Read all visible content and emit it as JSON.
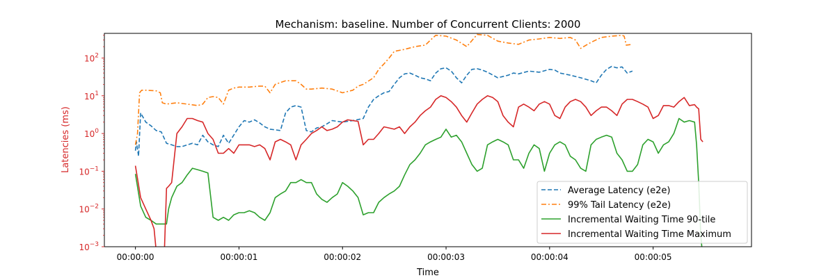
{
  "chart_data": {
    "type": "line",
    "title": "Mechanism: baseline. Number of Concurrent Clients: 2000",
    "xlabel": "Time",
    "ylabel": "Latencies (ms)",
    "yscale": "log",
    "ylim": [
      0.001,
      450
    ],
    "xlim": [
      -0.3,
      5.95
    ],
    "x_ticks": [
      0,
      1,
      2,
      3,
      4,
      5
    ],
    "x_tick_labels": [
      "00:00:00",
      "00:00:01",
      "00:00:02",
      "00:00:03",
      "00:00:04",
      "00:00:05"
    ],
    "y_ticks": [
      0.001,
      0.01,
      0.1,
      1,
      10,
      100
    ],
    "y_tick_labels": [
      [
        "10",
        "−3"
      ],
      [
        "10",
        "−2"
      ],
      [
        "10",
        "−1"
      ],
      [
        "10",
        "0"
      ],
      [
        "10",
        "1"
      ],
      [
        "10",
        "2"
      ]
    ],
    "axis_color": "#d62728",
    "grid": false,
    "legend_location": "lower right",
    "series": [
      {
        "name": "Average Latency (e2e)",
        "color": "#1f77b4",
        "style": "dashed",
        "x": [
          0,
          0.01,
          0.03,
          0.05,
          0.1,
          0.15,
          0.2,
          0.25,
          0.3,
          0.35,
          0.4,
          0.45,
          0.5,
          0.55,
          0.6,
          0.65,
          0.7,
          0.75,
          0.8,
          0.85,
          0.9,
          1.0,
          1.05,
          1.1,
          1.15,
          1.2,
          1.25,
          1.3,
          1.4,
          1.45,
          1.5,
          1.55,
          1.6,
          1.65,
          1.7,
          1.75,
          1.8,
          1.85,
          1.9,
          2.0,
          2.1,
          2.2,
          2.25,
          2.3,
          2.35,
          2.4,
          2.45,
          2.5,
          2.55,
          2.6,
          2.65,
          2.7,
          2.75,
          2.8,
          2.85,
          2.9,
          2.95,
          3.0,
          3.05,
          3.1,
          3.15,
          3.2,
          3.25,
          3.3,
          3.35,
          3.4,
          3.5,
          3.6,
          3.65,
          3.7,
          3.8,
          3.9,
          4.0,
          4.05,
          4.1,
          4.2,
          4.3,
          4.4,
          4.45,
          4.5,
          4.55,
          4.6,
          4.65,
          4.7,
          4.75,
          4.8
        ],
        "y": [
          0.35,
          0.6,
          0.25,
          3.5,
          2.0,
          1.6,
          1.2,
          1.1,
          0.55,
          0.5,
          0.45,
          0.45,
          0.5,
          0.55,
          0.5,
          0.9,
          0.6,
          0.5,
          0.45,
          0.9,
          0.55,
          1.5,
          2.2,
          2.0,
          2.3,
          1.9,
          1.5,
          1.3,
          1.2,
          3.5,
          5.0,
          5.5,
          5.0,
          1.2,
          1.1,
          1.4,
          1.5,
          1.8,
          2.2,
          2.0,
          2.2,
          2.5,
          5.0,
          8.0,
          10.0,
          12.0,
          13.0,
          20.0,
          30.0,
          38.0,
          40.0,
          35.0,
          30.0,
          28.0,
          25.0,
          40.0,
          52.0,
          55.0,
          45.0,
          30.0,
          22.0,
          35.0,
          50.0,
          52.0,
          48.0,
          42.0,
          30.0,
          35.0,
          40.0,
          38.0,
          45.0,
          42.0,
          50.0,
          48.0,
          40.0,
          35.0,
          30.0,
          25.0,
          22.0,
          35.0,
          50.0,
          60.0,
          55.0,
          58.0,
          40.0,
          45.0
        ]
      },
      {
        "name": "99% Tail Latency (e2e)",
        "color": "#ff7f0e",
        "style": "dashdot",
        "x": [
          0,
          0.02,
          0.04,
          0.06,
          0.1,
          0.2,
          0.24,
          0.26,
          0.3,
          0.4,
          0.5,
          0.6,
          0.65,
          0.7,
          0.75,
          0.8,
          0.85,
          0.9,
          0.95,
          1.0,
          1.1,
          1.2,
          1.25,
          1.3,
          1.35,
          1.45,
          1.5,
          1.55,
          1.6,
          1.65,
          1.7,
          1.8,
          1.9,
          2.0,
          2.1,
          2.15,
          2.2,
          2.3,
          2.35,
          2.4,
          2.45,
          2.5,
          2.6,
          2.7,
          2.8,
          2.85,
          2.9,
          3.0,
          3.1,
          3.2,
          3.3,
          3.4,
          3.5,
          3.6,
          3.7,
          3.8,
          3.9,
          4.0,
          4.1,
          4.2,
          4.25,
          4.3,
          4.4,
          4.5,
          4.6,
          4.7,
          4.72,
          4.74,
          4.8
        ],
        "y": [
          0.5,
          1.0,
          12.0,
          14.0,
          14.0,
          13.5,
          12.0,
          6.5,
          6.0,
          6.5,
          6.0,
          5.5,
          6.0,
          9.0,
          9.5,
          9.0,
          6.0,
          14.0,
          16.0,
          17.0,
          17.0,
          18.0,
          18.0,
          12.0,
          20.0,
          25.0,
          25.0,
          25.0,
          20.0,
          15.0,
          15.0,
          16.0,
          15.0,
          12.0,
          14.0,
          18.0,
          20.0,
          30.0,
          50.0,
          70.0,
          100.0,
          150.0,
          170.0,
          200.0,
          220.0,
          300.0,
          400.0,
          380.0,
          300.0,
          200.0,
          420.0,
          400.0,
          280.0,
          250.0,
          230.0,
          300.0,
          320.0,
          350.0,
          330.0,
          350.0,
          300.0,
          180.0,
          260.0,
          350.0,
          380.0,
          400.0,
          380.0,
          220.0,
          230.0
        ]
      },
      {
        "name": "Incremental Waiting Time 90-tile",
        "color": "#2ca02c",
        "style": "solid",
        "x": [
          0,
          0.05,
          0.1,
          0.15,
          0.2,
          0.25,
          0.28,
          0.3,
          0.32,
          0.35,
          0.4,
          0.45,
          0.5,
          0.55,
          0.6,
          0.65,
          0.7,
          0.75,
          0.8,
          0.85,
          0.9,
          0.95,
          1.0,
          1.05,
          1.1,
          1.15,
          1.2,
          1.25,
          1.3,
          1.35,
          1.4,
          1.45,
          1.5,
          1.55,
          1.6,
          1.65,
          1.7,
          1.75,
          1.8,
          1.85,
          1.9,
          1.95,
          2.0,
          2.05,
          2.1,
          2.15,
          2.2,
          2.25,
          2.3,
          2.35,
          2.4,
          2.45,
          2.5,
          2.55,
          2.6,
          2.65,
          2.7,
          2.75,
          2.8,
          2.85,
          2.9,
          2.95,
          3.0,
          3.05,
          3.1,
          3.15,
          3.2,
          3.25,
          3.3,
          3.35,
          3.4,
          3.45,
          3.5,
          3.55,
          3.6,
          3.65,
          3.7,
          3.75,
          3.8,
          3.85,
          3.9,
          3.95,
          4.0,
          4.05,
          4.1,
          4.15,
          4.2,
          4.25,
          4.3,
          4.35,
          4.4,
          4.45,
          4.5,
          4.55,
          4.6,
          4.65,
          4.7,
          4.75,
          4.8,
          4.85,
          4.9,
          4.95,
          5.0,
          5.05,
          5.1,
          5.15,
          5.2,
          5.25,
          5.3,
          5.35,
          5.4,
          5.42,
          5.44,
          5.46,
          5.48
        ],
        "y": [
          0.085,
          0.012,
          0.006,
          0.005,
          0.004,
          0.004,
          0.004,
          0.004,
          0.01,
          0.02,
          0.04,
          0.05,
          0.08,
          0.12,
          0.11,
          0.1,
          0.09,
          0.006,
          0.005,
          0.006,
          0.005,
          0.007,
          0.008,
          0.008,
          0.009,
          0.008,
          0.006,
          0.005,
          0.008,
          0.02,
          0.025,
          0.03,
          0.05,
          0.05,
          0.06,
          0.05,
          0.05,
          0.025,
          0.018,
          0.015,
          0.02,
          0.025,
          0.05,
          0.04,
          0.03,
          0.02,
          0.007,
          0.008,
          0.008,
          0.015,
          0.02,
          0.025,
          0.03,
          0.04,
          0.08,
          0.15,
          0.2,
          0.3,
          0.5,
          0.6,
          0.7,
          0.8,
          1.3,
          0.8,
          0.9,
          0.6,
          0.3,
          0.15,
          0.1,
          0.12,
          0.5,
          0.6,
          0.7,
          0.6,
          0.5,
          0.2,
          0.2,
          0.12,
          0.3,
          0.5,
          0.4,
          0.1,
          0.3,
          0.5,
          0.6,
          0.5,
          0.25,
          0.2,
          0.12,
          0.1,
          0.5,
          0.7,
          0.8,
          0.9,
          0.8,
          0.3,
          0.2,
          0.1,
          0.1,
          0.15,
          0.5,
          0.7,
          0.6,
          0.3,
          0.5,
          0.6,
          1.0,
          2.5,
          2.0,
          2.2,
          2.0,
          0.5,
          0.05,
          0.002,
          0.0005
        ]
      },
      {
        "name": "Incremental Waiting Time Maximum",
        "color": "#d62728",
        "style": "solid",
        "x": [
          0,
          0.05,
          0.1,
          0.15,
          0.18,
          0.2,
          0.22,
          0.25,
          0.28,
          0.3,
          0.32,
          0.35,
          0.4,
          0.45,
          0.5,
          0.55,
          0.6,
          0.65,
          0.7,
          0.75,
          0.8,
          0.85,
          0.9,
          0.95,
          1.0,
          1.05,
          1.1,
          1.15,
          1.2,
          1.25,
          1.3,
          1.35,
          1.4,
          1.45,
          1.5,
          1.55,
          1.6,
          1.65,
          1.7,
          1.75,
          1.8,
          1.85,
          1.9,
          1.95,
          2.0,
          2.05,
          2.1,
          2.15,
          2.2,
          2.25,
          2.3,
          2.35,
          2.4,
          2.45,
          2.5,
          2.55,
          2.6,
          2.65,
          2.7,
          2.75,
          2.8,
          2.85,
          2.9,
          2.95,
          3.0,
          3.05,
          3.1,
          3.15,
          3.2,
          3.25,
          3.3,
          3.35,
          3.4,
          3.45,
          3.5,
          3.55,
          3.6,
          3.65,
          3.7,
          3.75,
          3.8,
          3.85,
          3.9,
          3.95,
          4.0,
          4.05,
          4.1,
          4.15,
          4.2,
          4.25,
          4.3,
          4.35,
          4.4,
          4.45,
          4.5,
          4.55,
          4.6,
          4.65,
          4.7,
          4.75,
          4.8,
          4.85,
          4.9,
          4.95,
          5.0,
          5.05,
          5.1,
          5.15,
          5.2,
          5.25,
          5.3,
          5.35,
          5.4,
          5.42,
          5.44,
          5.46,
          5.48
        ],
        "y": [
          0.14,
          0.02,
          0.01,
          0.005,
          0.003,
          0.0008,
          0.0008,
          0.0008,
          0.0008,
          0.035,
          0.04,
          0.05,
          1.0,
          1.5,
          2.5,
          2.5,
          2.2,
          2.0,
          1.0,
          0.7,
          0.3,
          0.3,
          0.4,
          0.3,
          0.5,
          0.5,
          0.5,
          0.45,
          0.5,
          0.4,
          0.2,
          0.6,
          0.7,
          0.6,
          0.5,
          0.2,
          0.5,
          0.7,
          1.0,
          1.2,
          1.5,
          1.2,
          1.3,
          1.5,
          2.0,
          2.3,
          2.2,
          2.1,
          0.5,
          0.7,
          0.7,
          1.0,
          1.5,
          1.4,
          1.3,
          1.5,
          1.0,
          1.5,
          2.0,
          3.0,
          4.0,
          5.0,
          8.0,
          10.0,
          9.0,
          7.0,
          5.0,
          3.0,
          2.0,
          3.5,
          6.0,
          8.0,
          10.0,
          9.0,
          7.0,
          3.0,
          2.0,
          1.5,
          5.0,
          6.0,
          5.0,
          4.0,
          6.0,
          7.0,
          6.0,
          3.0,
          2.5,
          5.0,
          7.0,
          8.0,
          7.0,
          5.0,
          3.0,
          4.0,
          5.0,
          5.0,
          4.0,
          3.0,
          6.0,
          8.0,
          8.0,
          7.0,
          6.0,
          5.0,
          2.5,
          3.0,
          5.5,
          5.5,
          5.0,
          7.0,
          9.0,
          5.5,
          5.8,
          5.0,
          4.5,
          0.7,
          0.6
        ]
      }
    ]
  }
}
